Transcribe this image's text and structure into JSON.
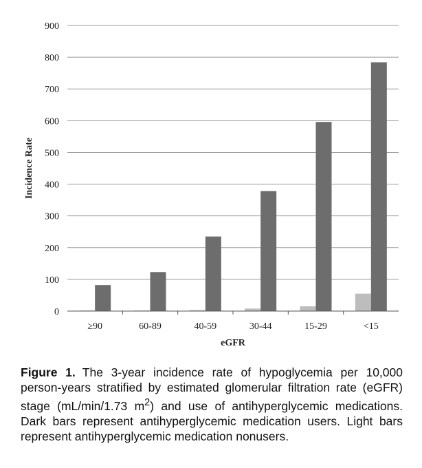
{
  "chart_data": {
    "type": "bar",
    "categories": [
      "≥90",
      "60-89",
      "40-59",
      "30-44",
      "15-29",
      "<15"
    ],
    "series": [
      {
        "name": "Antihyperglycemic medication nonusers",
        "color": "#bdbdbd",
        "values": [
          2,
          2,
          3,
          8,
          15,
          55
        ]
      },
      {
        "name": "Antihyperglycemic medication users",
        "color": "#6d6d6d",
        "values": [
          82,
          123,
          235,
          378,
          596,
          784
        ]
      }
    ],
    "xlabel": "eGFR",
    "ylabel": "Incidence Rate",
    "ylim": [
      0,
      900
    ],
    "yticks": [
      0,
      100,
      200,
      300,
      400,
      500,
      600,
      700,
      800,
      900
    ],
    "grid": true,
    "legend": "none"
  },
  "caption": {
    "label": "Figure 1.",
    "text_before_sup": "The 3-year incidence rate of hypoglycemia per 10,000 person-years stratified by estimated glomerular filtration rate (eGFR) stage (mL/min/1.73 m",
    "sup": "2",
    "text_after_sup": ") and use of antihyperglycemic medications. Dark bars represent antihyperglycemic medication users. Light bars represent antihyperglycemic medication nonusers."
  }
}
